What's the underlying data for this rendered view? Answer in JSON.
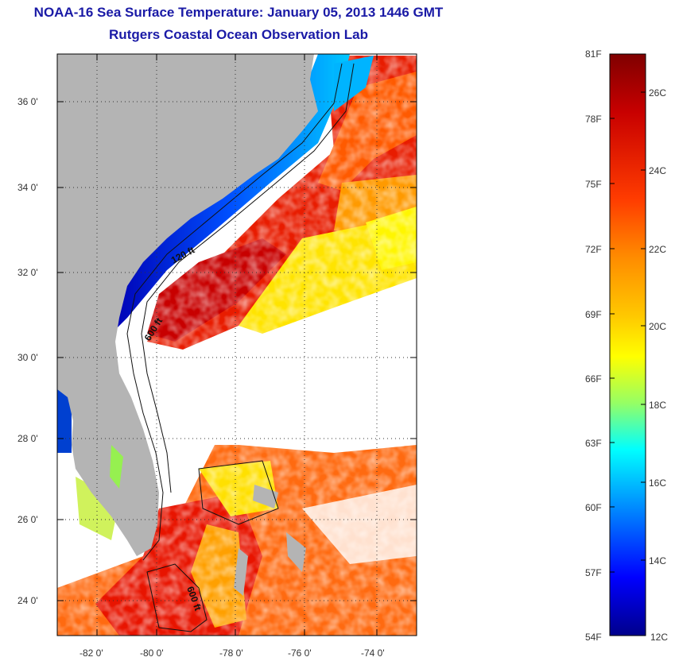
{
  "header": {
    "title": "NOAA-16 Sea Surface Temperature:  January 05, 2013 1446 GMT",
    "subtitle": "Rutgers Coastal Ocean Observation Lab"
  },
  "map": {
    "lat_labels": [
      "36 0'",
      "34 0'",
      "32 0'",
      "30 0'",
      "28 0'",
      "26 0'",
      "24 0'"
    ],
    "lon_labels": [
      "-82 0'",
      "-80 0'",
      "-78 0'",
      "-76 0'",
      "-74 0'"
    ],
    "contour_labels": [
      "120 ft",
      "600 ft",
      "600 ft"
    ],
    "land_color": "#b4b4b4",
    "no_data_color": "#ffffff"
  },
  "colorbar": {
    "f_labels": [
      "81F",
      "78F",
      "75F",
      "72F",
      "69F",
      "66F",
      "63F",
      "60F",
      "57F",
      "54F"
    ],
    "c_labels": [
      "26C",
      "24C",
      "22C",
      "20C",
      "18C",
      "16C",
      "14C",
      "12C"
    ],
    "colors": [
      "#7f0000",
      "#c80000",
      "#ff3c00",
      "#ff8c00",
      "#ffc800",
      "#ffff00",
      "#96ff64",
      "#00ffff",
      "#0096ff",
      "#0000ff",
      "#00008b"
    ]
  }
}
